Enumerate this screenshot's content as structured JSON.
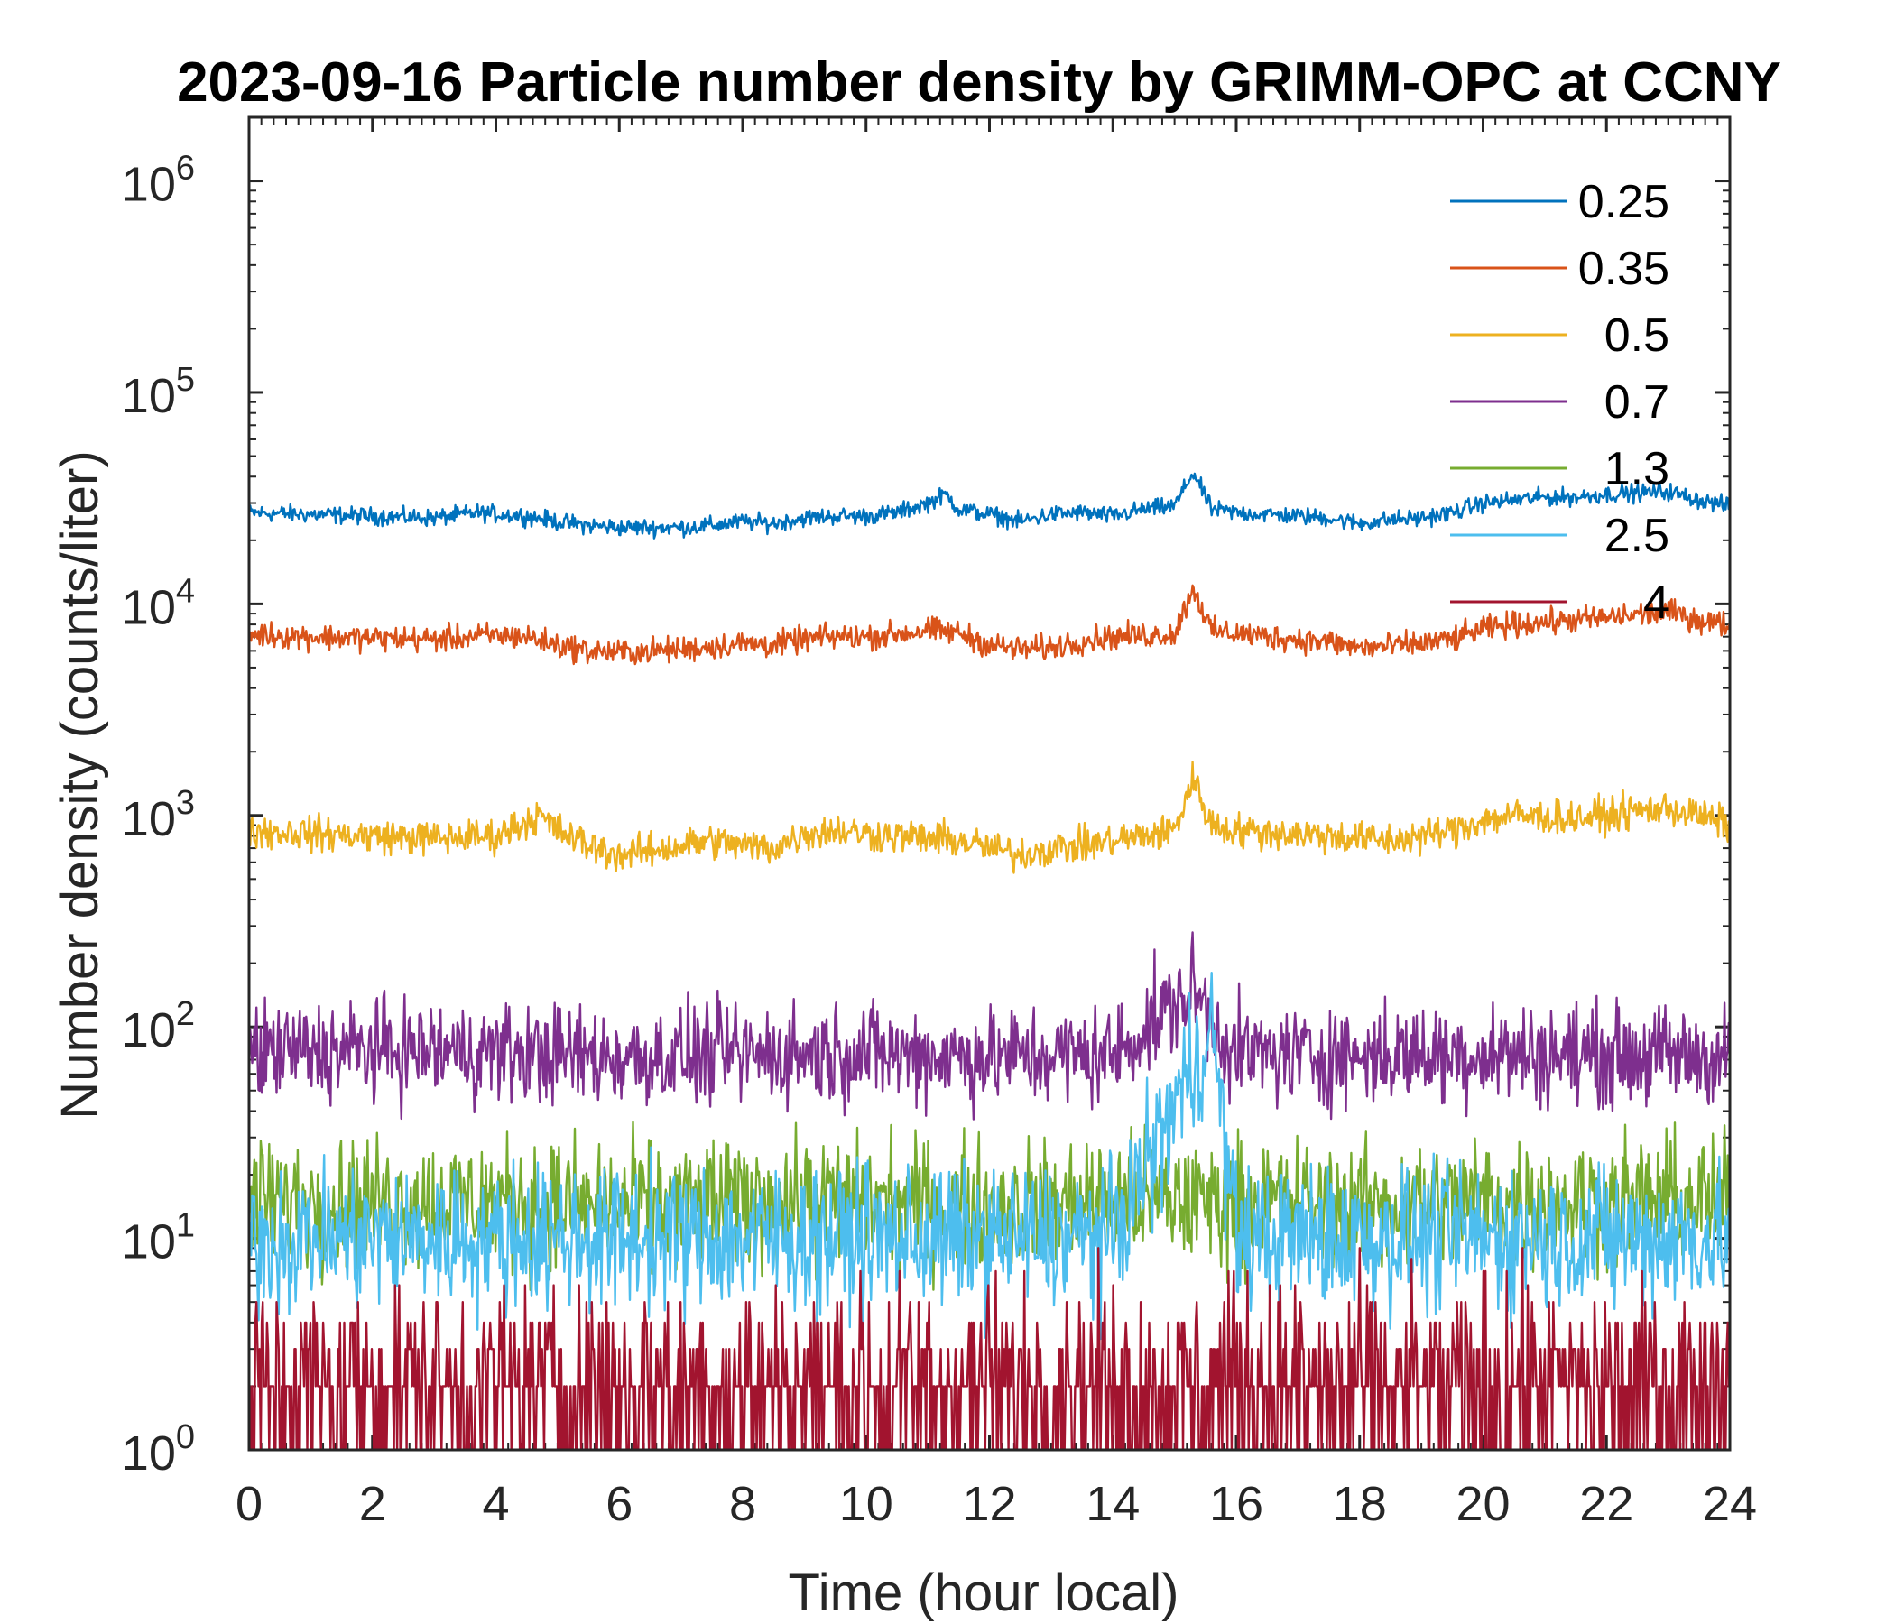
{
  "chart_data": {
    "type": "line",
    "title": "2023-09-16 Particle number density by GRIMM-OPC at CCNY",
    "xlabel": "Time (hour local)",
    "ylabel": "Number density (counts/liter)",
    "xlim": [
      0,
      24
    ],
    "ylim": [
      1,
      2000000
    ],
    "yscale": "log",
    "xticks": [
      0,
      2,
      4,
      6,
      8,
      10,
      12,
      14,
      16,
      18,
      20,
      22,
      24
    ],
    "xtick_labels": [
      "0",
      "2",
      "4",
      "6",
      "8",
      "10",
      "12",
      "14",
      "16",
      "18",
      "20",
      "22",
      "24"
    ],
    "yticks": [
      1,
      10,
      100,
      1000,
      10000,
      100000,
      1000000
    ],
    "ytick_labels": [
      {
        "base": "10",
        "exp": "0"
      },
      {
        "base": "10",
        "exp": "1"
      },
      {
        "base": "10",
        "exp": "2"
      },
      {
        "base": "10",
        "exp": "3"
      },
      {
        "base": "10",
        "exp": "4"
      },
      {
        "base": "10",
        "exp": "5"
      },
      {
        "base": "10",
        "exp": "6"
      }
    ],
    "legend_position": "top-right",
    "series": [
      {
        "name": "0.25",
        "color": "#0072BD",
        "x": [
          0,
          1,
          2,
          3,
          3.7,
          4.5,
          5,
          5.5,
          6,
          6.5,
          7,
          7.5,
          8,
          8.5,
          9,
          9.5,
          10,
          10.5,
          11,
          11.3,
          11.5,
          12,
          12.5,
          13,
          13.5,
          14,
          14.5,
          15,
          15.3,
          15.6,
          16,
          16.5,
          17,
          17.5,
          18,
          18.5,
          19,
          19.5,
          20,
          20.5,
          21,
          21.5,
          22,
          22.5,
          23,
          23.5,
          24
        ],
        "values": [
          27000,
          26500,
          26000,
          25500,
          27000,
          26000,
          24500,
          23500,
          23000,
          23000,
          23000,
          23500,
          24500,
          24000,
          25500,
          26000,
          26000,
          27000,
          30000,
          33000,
          28000,
          26500,
          24500,
          26500,
          27000,
          26000,
          28000,
          29000,
          42000,
          28000,
          27000,
          26500,
          26000,
          25500,
          24000,
          25000,
          25500,
          27000,
          30000,
          31000,
          32000,
          32000,
          33000,
          33500,
          34000,
          31000,
          29000
        ]
      },
      {
        "name": "0.35",
        "color": "#D95319",
        "x": [
          0,
          1,
          2,
          3,
          4,
          4.5,
          5,
          5.5,
          6,
          6.5,
          7,
          7.5,
          8,
          8.5,
          9,
          9.5,
          10,
          10.5,
          11,
          11.5,
          12,
          12.5,
          13,
          13.5,
          14,
          14.5,
          15,
          15.3,
          15.6,
          16,
          16.5,
          17,
          17.5,
          18,
          18.5,
          19,
          19.5,
          20,
          20.5,
          21,
          21.5,
          22,
          22.5,
          23,
          23.5,
          24
        ],
        "values": [
          7200,
          7000,
          6900,
          6800,
          7100,
          7000,
          6400,
          6000,
          5900,
          6000,
          6100,
          6300,
          6500,
          6400,
          6800,
          7000,
          7000,
          7200,
          7500,
          7300,
          6400,
          6100,
          6200,
          6700,
          7000,
          7100,
          7200,
          12000,
          7400,
          7300,
          7000,
          6800,
          6600,
          6200,
          6300,
          6500,
          6800,
          7600,
          8000,
          8200,
          8400,
          8600,
          8900,
          9200,
          8400,
          7900
        ]
      },
      {
        "name": "0.5",
        "color": "#EDB120",
        "x": [
          0,
          1,
          2,
          3,
          4,
          4.7,
          5,
          5.5,
          6,
          6.5,
          7,
          7.5,
          8,
          8.5,
          9,
          9.5,
          10,
          10.5,
          11,
          11.5,
          12,
          12.5,
          13,
          13.5,
          14,
          14.5,
          15,
          15.3,
          15.6,
          16,
          16.5,
          17,
          17.5,
          18,
          18.5,
          19,
          19.5,
          20,
          20.5,
          21,
          21.5,
          22,
          22.5,
          23,
          23.5,
          24
        ],
        "values": [
          850,
          820,
          800,
          780,
          800,
          1000,
          850,
          720,
          650,
          680,
          720,
          760,
          720,
          700,
          820,
          850,
          820,
          800,
          780,
          760,
          700,
          650,
          700,
          720,
          760,
          800,
          850,
          1500,
          900,
          850,
          830,
          820,
          800,
          780,
          760,
          800,
          850,
          950,
          1000,
          980,
          970,
          1000,
          1050,
          1080,
          1000,
          900
        ]
      },
      {
        "name": "0.7",
        "color": "#7E2F8E",
        "x": [
          0,
          2,
          4,
          6,
          8,
          10,
          12,
          14,
          15.3,
          16,
          18,
          20,
          22,
          24
        ],
        "values": [
          75,
          78,
          76,
          72,
          74,
          76,
          72,
          74,
          150,
          74,
          73,
          75,
          74,
          72
        ]
      },
      {
        "name": "1.3",
        "color": "#77AC30",
        "x": [
          0,
          2,
          4,
          6,
          8,
          10,
          12,
          14,
          16,
          18,
          20,
          22,
          24
        ],
        "values": [
          15,
          15,
          15,
          14,
          15,
          15,
          14,
          15,
          15,
          14,
          15,
          15,
          15
        ]
      },
      {
        "name": "2.5",
        "color": "#4DBEEE",
        "x": [
          0,
          2,
          4,
          6,
          8,
          10,
          12,
          14,
          15.6,
          16,
          18,
          20,
          22,
          24
        ],
        "values": [
          10,
          10,
          10,
          10,
          10,
          10,
          10,
          10,
          100,
          10,
          10,
          10,
          10,
          10
        ]
      },
      {
        "name": "4",
        "color": "#A2142F",
        "x": [
          0,
          2,
          4,
          6,
          8,
          10,
          12,
          14,
          16,
          18,
          20,
          22,
          24
        ],
        "values": [
          2,
          2,
          2,
          2,
          2,
          2,
          2,
          2,
          2,
          2,
          2,
          2,
          2
        ]
      }
    ]
  }
}
